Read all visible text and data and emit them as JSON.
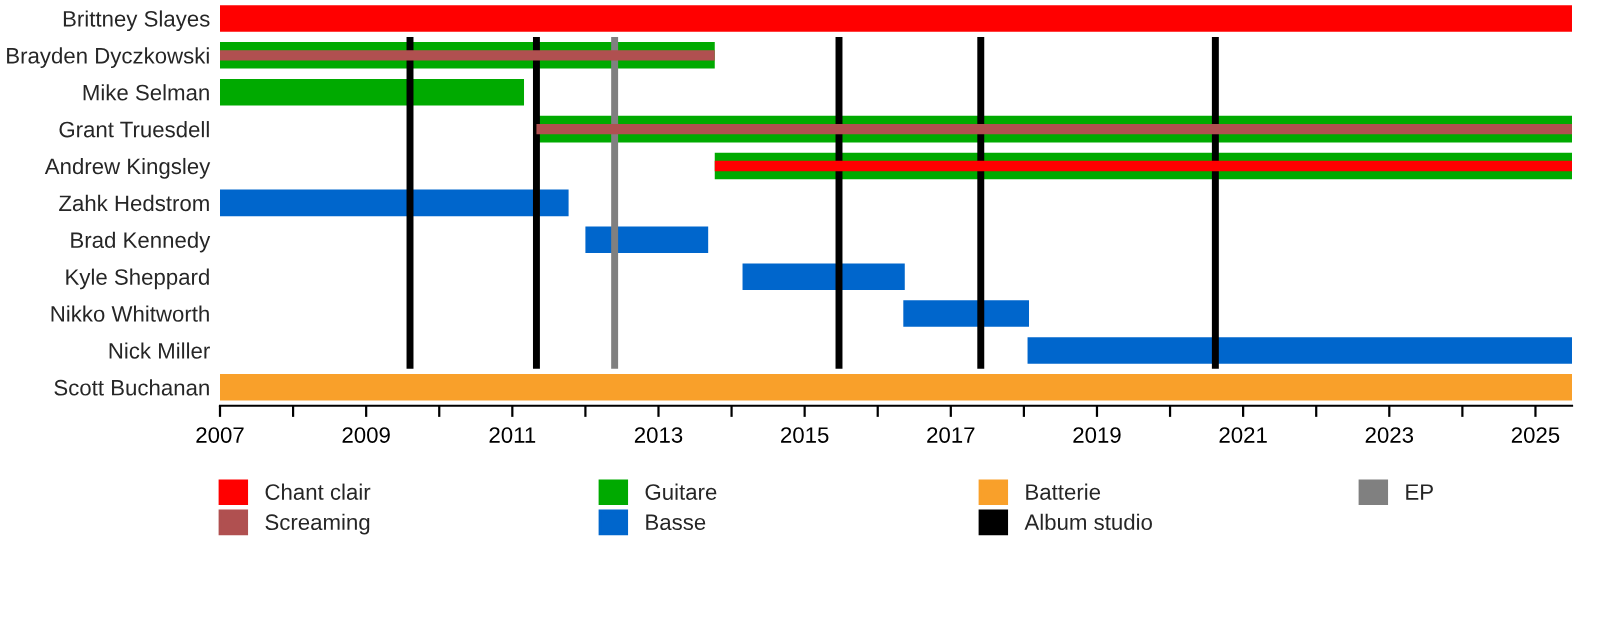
{
  "chart_data": {
    "type": "bar",
    "orientation": "horizontal",
    "categories": [
      "Brittney Slayes",
      "Brayden Dyczkowski",
      "Mike Selman",
      "Grant Truesdell",
      "Andrew Kingsley",
      "Zahk Hedstrom",
      "Brad Kennedy",
      "Kyle Sheppard",
      "Nikko Whitworth",
      "Nick Miller",
      "Scott Buchanan"
    ],
    "series": [
      {
        "name": "Chant clair",
        "color": "#ff0000",
        "base": [
          2007,
          null,
          null,
          null,
          2013.77,
          null,
          null,
          null,
          null,
          null,
          null
        ],
        "values": [
          18.5,
          null,
          null,
          null,
          11.73,
          null,
          null,
          null,
          null,
          null,
          null
        ]
      },
      {
        "name": "Screaming",
        "color": "#b05050",
        "base": [
          null,
          2007,
          null,
          2011.33,
          null,
          null,
          null,
          null,
          null,
          null,
          null
        ],
        "values": [
          null,
          6.77,
          null,
          14.17,
          null,
          null,
          null,
          null,
          null,
          null,
          null
        ]
      },
      {
        "name": "Guitare",
        "color": "#00aa00",
        "base": [
          null,
          2007,
          2007,
          2011.33,
          2013.77,
          null,
          null,
          null,
          null,
          null,
          null
        ],
        "values": [
          null,
          6.77,
          4.16,
          14.17,
          11.73,
          null,
          null,
          null,
          null,
          null,
          null
        ]
      },
      {
        "name": "Basse",
        "color": "#0066cc",
        "base": [
          null,
          null,
          null,
          null,
          null,
          2007,
          2012.0,
          2014.15,
          2016.35,
          2018.05,
          null
        ],
        "values": [
          null,
          null,
          null,
          null,
          null,
          4.77,
          1.68,
          2.22,
          1.72,
          7.45,
          null
        ]
      },
      {
        "name": "Batterie",
        "color": "#f9a02a",
        "base": [
          null,
          null,
          null,
          null,
          null,
          null,
          null,
          null,
          null,
          null,
          2007
        ],
        "values": [
          null,
          null,
          null,
          null,
          null,
          null,
          null,
          null,
          null,
          null,
          18.5
        ]
      }
    ],
    "ref_lines": [
      {
        "axis": "x",
        "value": 2009.6,
        "label": "Album studio",
        "color": "#000000"
      },
      {
        "axis": "x",
        "value": 2011.33,
        "color": "#000000"
      },
      {
        "axis": "x",
        "value": 2015.47,
        "color": "#000000"
      },
      {
        "axis": "x",
        "value": 2017.41,
        "color": "#000000"
      },
      {
        "axis": "x",
        "value": 2020.62,
        "color": "#000000"
      },
      {
        "axis": "x",
        "value": 2012.4,
        "label": "EP",
        "color": "#808080"
      }
    ],
    "xlim": [
      2007,
      2025.5
    ],
    "xticks": [
      2007,
      {
        "value": 2008,
        "label": null
      },
      2009,
      {
        "value": 2010,
        "label": null
      },
      2011,
      {
        "value": 2012,
        "label": null
      },
      2013,
      {
        "value": 2014,
        "label": null
      },
      2015,
      {
        "value": 2016,
        "label": null
      },
      2017,
      {
        "value": 2018,
        "label": null
      },
      2019,
      {
        "value": 2020,
        "label": null
      },
      2021,
      {
        "value": 2022,
        "label": null
      },
      2023,
      {
        "value": 2024,
        "label": null
      },
      2025
    ],
    "legend": "bottom",
    "grid": false
  }
}
